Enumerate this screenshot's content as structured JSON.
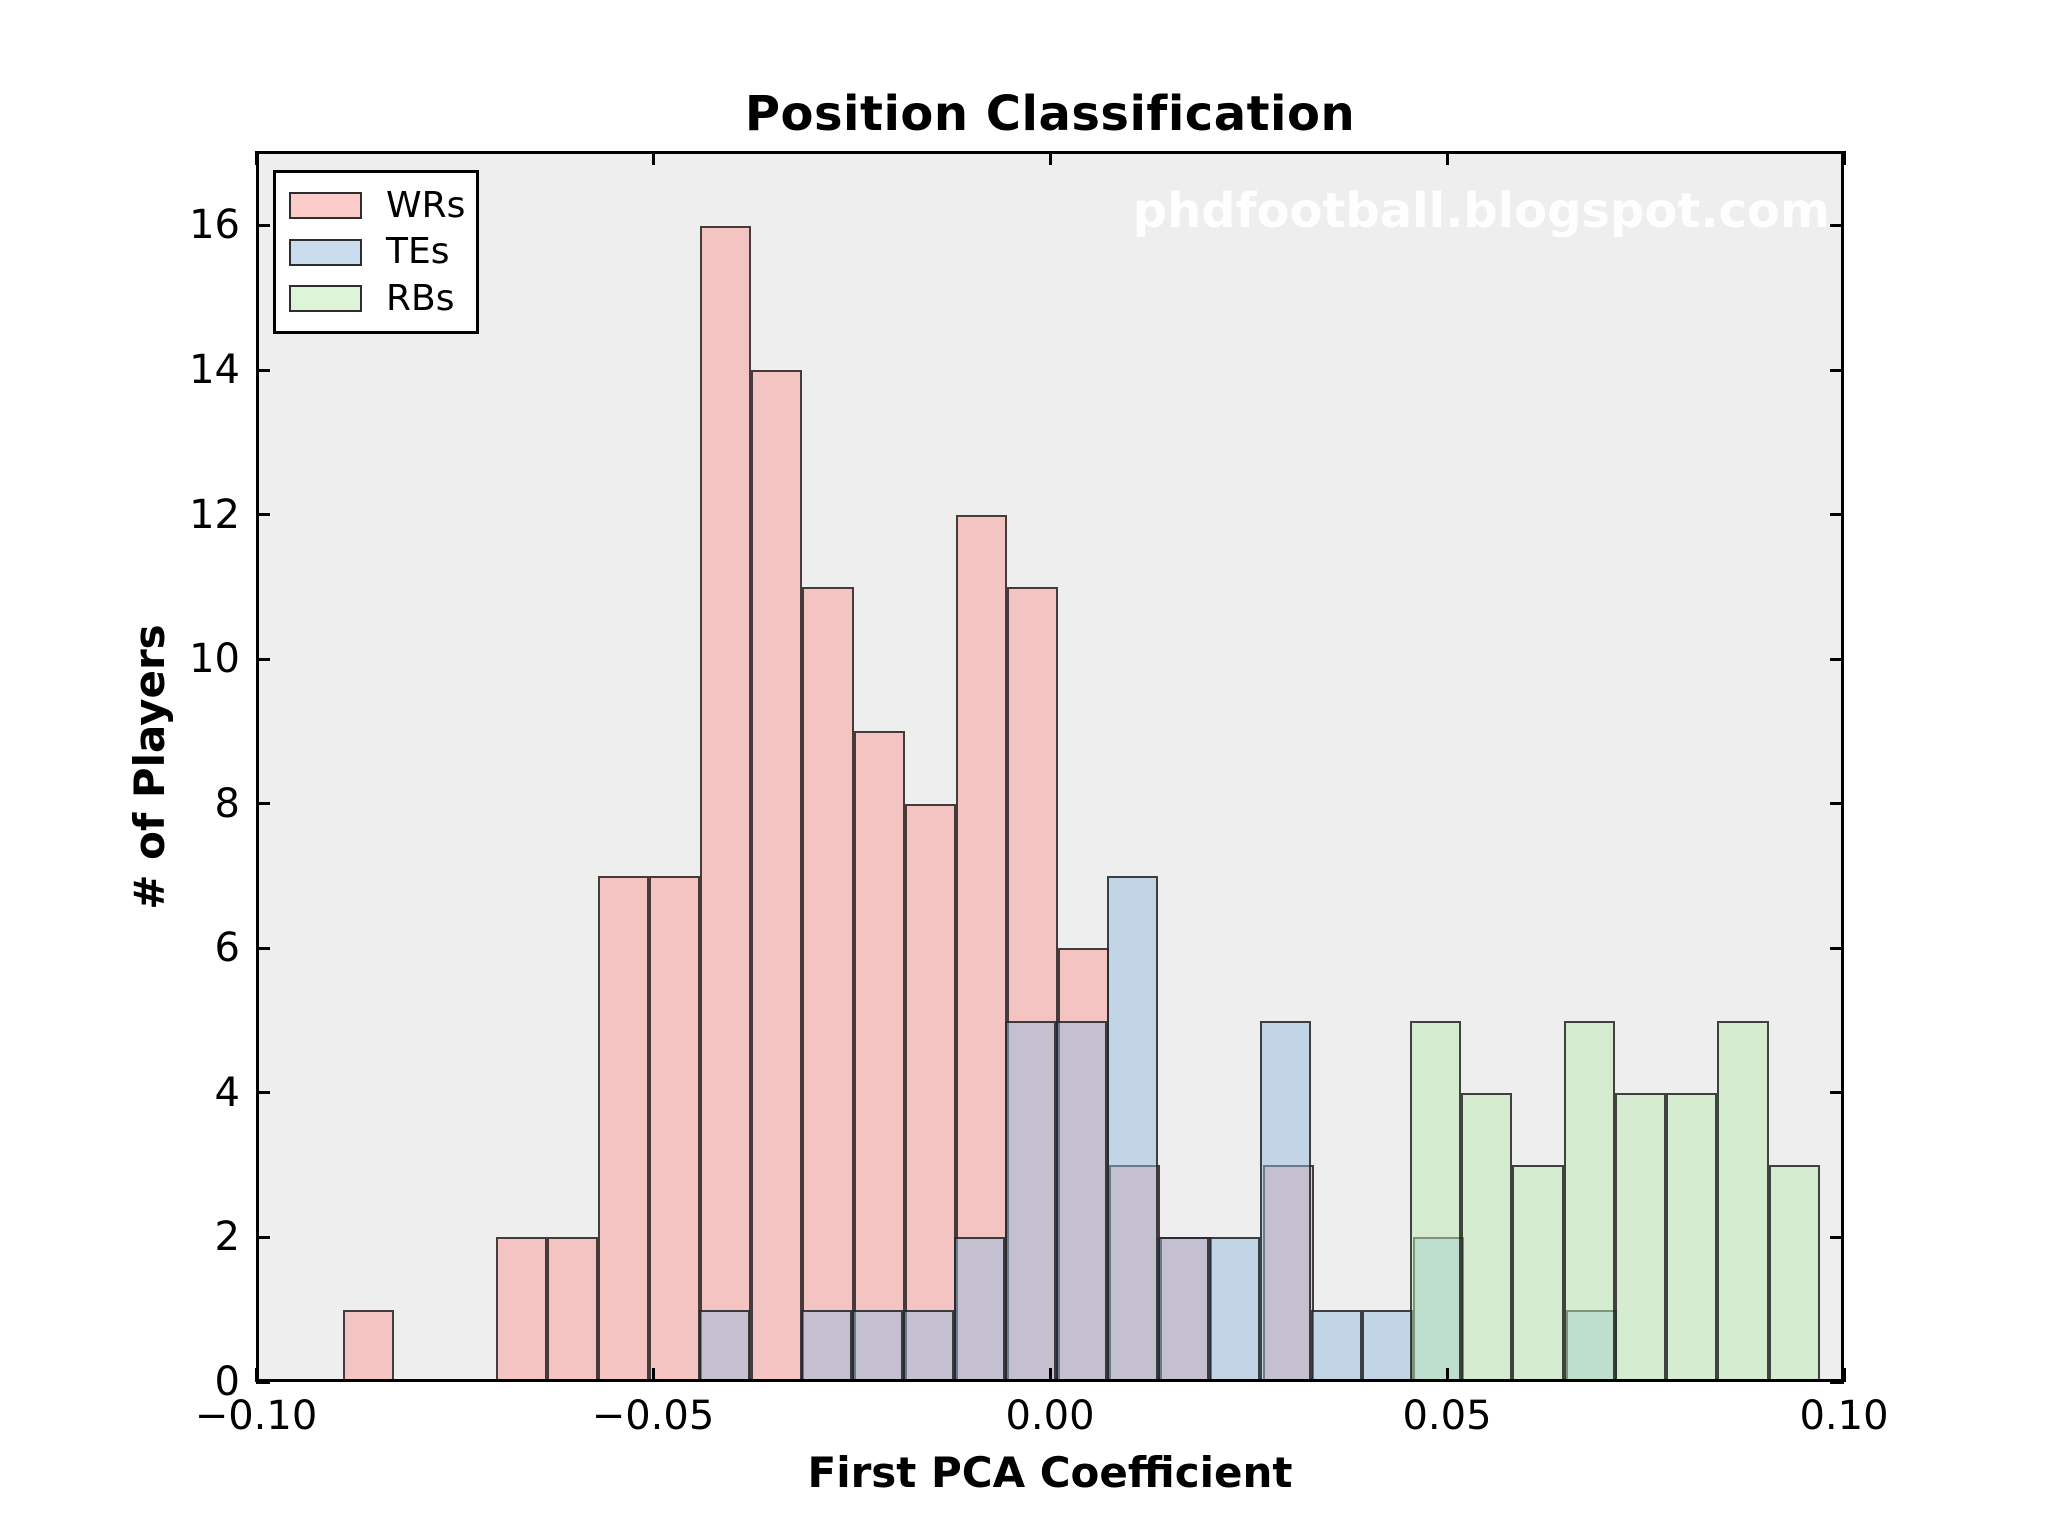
{
  "title": "Position Classification",
  "watermark": "phdfootball.blogspot.com",
  "axes": {
    "xlabel": "First PCA Coefficient",
    "ylabel": "# of Players",
    "plot_bg": "#eeeeee",
    "spine_color": "#000000",
    "xticks": [
      {
        "v": -0.1,
        "label": "−0.10"
      },
      {
        "v": -0.05,
        "label": "−0.05"
      },
      {
        "v": 0.0,
        "label": "0.00"
      },
      {
        "v": 0.05,
        "label": "0.05"
      },
      {
        "v": 0.1,
        "label": "0.10"
      }
    ],
    "yticks": [
      {
        "v": 0,
        "label": "0"
      },
      {
        "v": 2,
        "label": "2"
      },
      {
        "v": 4,
        "label": "4"
      },
      {
        "v": 6,
        "label": "6"
      },
      {
        "v": 8,
        "label": "8"
      },
      {
        "v": 10,
        "label": "10"
      },
      {
        "v": 12,
        "label": "12"
      },
      {
        "v": 14,
        "label": "14"
      },
      {
        "v": 16,
        "label": "16"
      }
    ]
  },
  "legend": {
    "items": [
      {
        "label": "WRs"
      },
      {
        "label": "TEs"
      },
      {
        "label": "RBs"
      }
    ]
  },
  "chart_data": {
    "type": "bar",
    "subtype": "overlapping-histogram",
    "title": "Position Classification",
    "xlabel": "First PCA Coefficient",
    "ylabel": "# of Players",
    "xlim": [
      -0.1,
      0.1
    ],
    "ylim": [
      0,
      17.03
    ],
    "grid": false,
    "legend_position": "upper left",
    "bin_width": 0.00643,
    "edge_color": "rgba(25,25,25,0.8)",
    "series": [
      {
        "name": "WRs",
        "fill": "#FA9A96",
        "alpha": 0.5,
        "bars": [
          [
            -0.08904,
            -0.08262,
            1
          ],
          [
            -0.06977,
            -0.06335,
            2
          ],
          [
            -0.06335,
            -0.05693,
            2
          ],
          [
            -0.05693,
            -0.0505,
            7
          ],
          [
            -0.0505,
            -0.04408,
            7
          ],
          [
            -0.04408,
            -0.03766,
            16
          ],
          [
            -0.03766,
            -0.03124,
            14
          ],
          [
            -0.03124,
            -0.02469,
            11
          ],
          [
            -0.02469,
            -0.01826,
            9
          ],
          [
            -0.01826,
            -0.01184,
            8
          ],
          [
            -0.01184,
            -0.00541,
            12
          ],
          [
            -0.00541,
            0.00101,
            11
          ],
          [
            0.00101,
            0.00743,
            6
          ],
          [
            0.00743,
            0.01385,
            3
          ],
          [
            0.01385,
            0.0204,
            2
          ],
          [
            0.02683,
            0.03325,
            3
          ]
        ]
      },
      {
        "name": "TEs",
        "fill": "#94BBDE",
        "alpha": 0.5,
        "bars": [
          [
            -0.0442,
            -0.03778,
            1
          ],
          [
            -0.03136,
            -0.02494,
            1
          ],
          [
            -0.02494,
            -0.01851,
            1
          ],
          [
            -0.01851,
            -0.01209,
            1
          ],
          [
            -0.01209,
            -0.00567,
            2
          ],
          [
            -0.00567,
            0.00076,
            5
          ],
          [
            0.00076,
            0.00718,
            5
          ],
          [
            0.00718,
            0.0136,
            7
          ],
          [
            0.0136,
            0.02003,
            2
          ],
          [
            0.02003,
            0.02645,
            2
          ],
          [
            0.02645,
            0.03287,
            5
          ],
          [
            0.03287,
            0.03929,
            1
          ],
          [
            0.03929,
            0.04572,
            1
          ],
          [
            0.04572,
            0.05214,
            2
          ],
          [
            0.06498,
            0.07141,
            1
          ]
        ]
      },
      {
        "name": "RBs",
        "fill": "#BCEAB4",
        "alpha": 0.5,
        "bars": [
          [
            0.04534,
            0.05176,
            5
          ],
          [
            0.05176,
            0.05818,
            4
          ],
          [
            0.05818,
            0.06473,
            3
          ],
          [
            0.06473,
            0.07116,
            5
          ],
          [
            0.07116,
            0.07758,
            4
          ],
          [
            0.07758,
            0.084,
            4
          ],
          [
            0.084,
            0.09055,
            5
          ],
          [
            0.09055,
            0.09698,
            3
          ]
        ]
      }
    ]
  }
}
